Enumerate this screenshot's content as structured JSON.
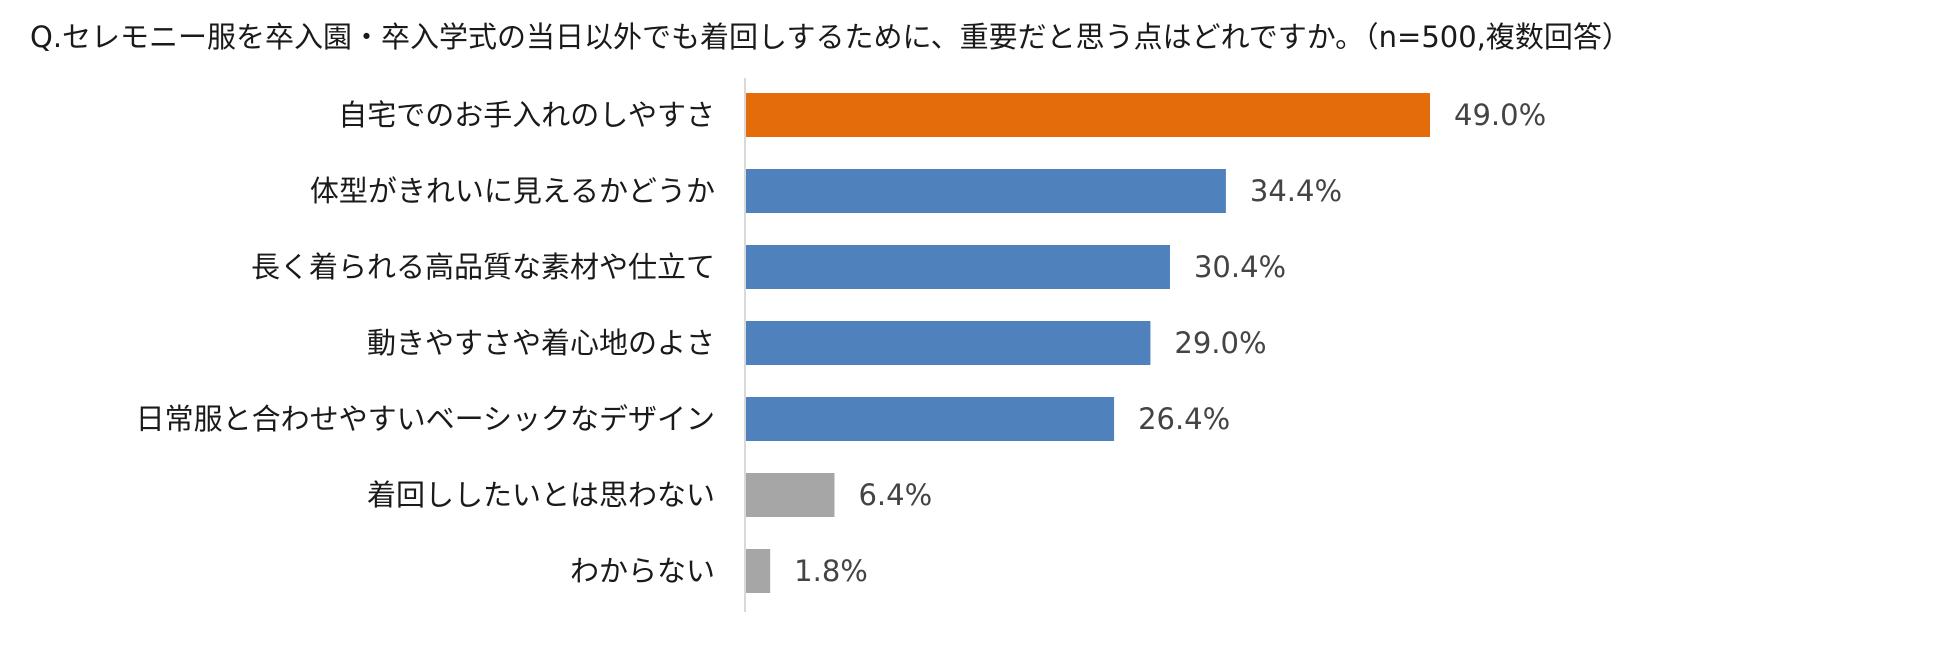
{
  "chart_data": {
    "type": "bar",
    "orientation": "horizontal",
    "title": "Q.セレモニー服を卒入園・卒入学式の当日以外でも着回しするために、重要だと思う点はどれですか。（n=500,複数回答）",
    "categories": [
      "自宅でのお手入れのしやすさ",
      "体型がきれいに見えるかどうか",
      "長く着られる高品質な素材や仕立て",
      "動きやすさや着心地のよさ",
      "日常服と合わせやすいベーシックなデザイン",
      "着回ししたいとは思わない",
      "わからない"
    ],
    "values": [
      49.0,
      34.4,
      30.4,
      29.0,
      26.4,
      6.4,
      1.8
    ],
    "value_labels": [
      "49.0%",
      "34.4%",
      "30.4%",
      "29.0%",
      "26.4%",
      "6.4%",
      "1.8%"
    ],
    "unit": "%",
    "xlim": [
      0,
      100
    ],
    "grid": false,
    "legend": "none",
    "bar_colors": [
      "#E46C0A",
      "#4F81BD",
      "#4F81BD",
      "#4F81BD",
      "#4F81BD",
      "#A6A6A6",
      "#A6A6A6"
    ],
    "axis_color": "#D9D9D9"
  }
}
